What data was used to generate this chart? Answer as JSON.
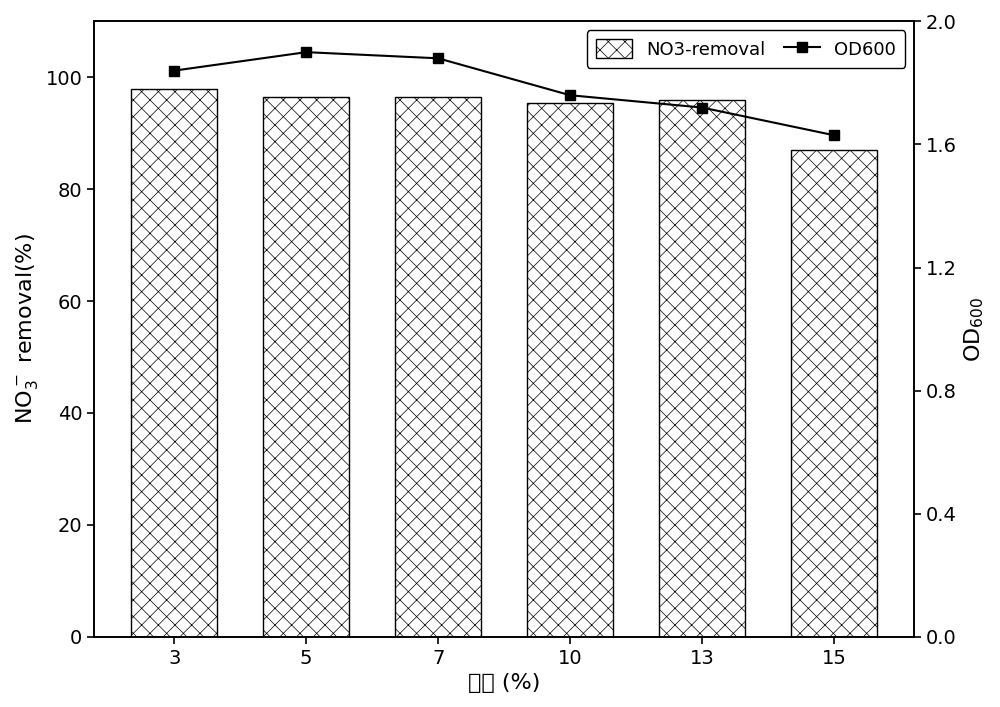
{
  "categories": [
    "3",
    "5",
    "7",
    "10",
    "13",
    "15"
  ],
  "bar_values": [
    98,
    96.5,
    96.5,
    95.5,
    96,
    87
  ],
  "od600_values": [
    1.84,
    1.9,
    1.88,
    1.76,
    1.72,
    1.63
  ],
  "bar_color": "#ffffff",
  "bar_hatch": "xx",
  "bar_edgecolor": "#000000",
  "line_color": "#000000",
  "marker_color": "#000000",
  "marker": "s",
  "marker_size": 7,
  "xlabel": "盐度 (%)",
  "ylabel_left": "NO$_3^-$ removal(%)",
  "ylabel_right": "OD$_{600}$",
  "ylim_left": [
    0,
    110
  ],
  "ylim_right": [
    0.0,
    2.0
  ],
  "yticks_left": [
    0,
    20,
    40,
    60,
    80,
    100
  ],
  "yticks_right": [
    0.0,
    0.4,
    0.8,
    1.2,
    1.6,
    2.0
  ],
  "legend_no3_label": "NO3-removal",
  "legend_od600_label": "OD600",
  "axis_fontsize": 16,
  "tick_fontsize": 14,
  "legend_fontsize": 13,
  "bar_width": 0.65,
  "figure_facecolor": "#ffffff",
  "hatch_linewidth": 0.5
}
